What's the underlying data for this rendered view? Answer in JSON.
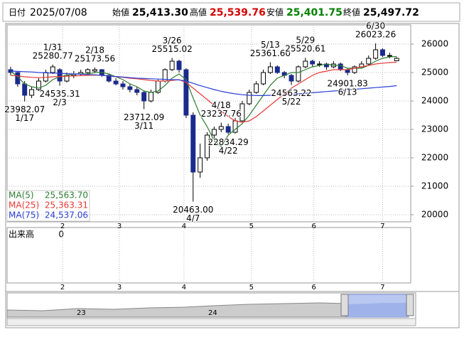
{
  "header": {
    "date_label": "日付",
    "date": "2025/07/08",
    "fields": [
      {
        "label": "始値",
        "value": "25,413.30",
        "color": "#000000"
      },
      {
        "label": "高値",
        "value": "25,539.76",
        "color": "#d40000"
      },
      {
        "label": "安値",
        "value": "25,401.75",
        "color": "#008000"
      },
      {
        "label": "終値",
        "value": "25,497.72",
        "color": "#000000"
      }
    ]
  },
  "chart_data": {
    "type": "candlestick",
    "xlim": [
      -0.5,
      57
    ],
    "xticks": [
      {
        "value": 7.4,
        "label": "2"
      },
      {
        "value": 15.5,
        "label": "3"
      },
      {
        "value": 24.7,
        "label": "4"
      },
      {
        "value": 34.3,
        "label": "5"
      },
      {
        "value": 43.2,
        "label": "6"
      },
      {
        "value": 53,
        "label": "7"
      }
    ],
    "ylim": [
      19750,
      26675
    ],
    "yticks": [
      20000,
      21000,
      22000,
      23000,
      24000,
      25000,
      26000
    ],
    "grid": true,
    "up_color": "#ffffff",
    "down_color": "#1a2a8c",
    "ohlc": [
      [
        25100,
        25200,
        24900,
        25000
      ],
      [
        25000,
        25050,
        24500,
        24600
      ],
      [
        24600,
        24700,
        23982.07,
        24200
      ],
      [
        24200,
        24500,
        24100,
        24400
      ],
      [
        24400,
        24800,
        24350,
        24700
      ],
      [
        24700,
        25100,
        24650,
        25000
      ],
      [
        25000,
        25280.77,
        24950,
        25200
      ],
      [
        25100,
        25150,
        24535.31,
        24700
      ],
      [
        24700,
        25000,
        24650,
        24900
      ],
      [
        24900,
        25050,
        24800,
        24950
      ],
      [
        24950,
        25100,
        24900,
        25000
      ],
      [
        25000,
        25150,
        24950,
        25100
      ],
      [
        25050,
        25173.56,
        24980,
        25100
      ],
      [
        25100,
        25120,
        24850,
        24900
      ],
      [
        24900,
        24950,
        24650,
        24700
      ],
      [
        24700,
        24800,
        24550,
        24600
      ],
      [
        24600,
        24700,
        24400,
        24500
      ],
      [
        24500,
        24600,
        24300,
        24400
      ],
      [
        24400,
        24500,
        24200,
        24300
      ],
      [
        24300,
        24350,
        23712.09,
        24000
      ],
      [
        24000,
        24400,
        23950,
        24300
      ],
      [
        24300,
        24750,
        24250,
        24700
      ],
      [
        24700,
        25150,
        24650,
        25100
      ],
      [
        25100,
        25515.02,
        25050,
        25400
      ],
      [
        25400,
        25450,
        25000,
        25100
      ],
      [
        25100,
        25150,
        23400,
        23500
      ],
      [
        23500,
        23600,
        20463,
        21500
      ],
      [
        21500,
        22500,
        21300,
        22000
      ],
      [
        22000,
        22900,
        21900,
        22800
      ],
      [
        22800,
        23100,
        22600,
        23000
      ],
      [
        23000,
        23237.76,
        22900,
        23100
      ],
      [
        23100,
        23200,
        22834.29,
        22900
      ],
      [
        22900,
        23400,
        22850,
        23300
      ],
      [
        23300,
        24000,
        23250,
        23900
      ],
      [
        23900,
        24400,
        23850,
        24300
      ],
      [
        24300,
        24700,
        24250,
        24600
      ],
      [
        24600,
        25100,
        24550,
        25000
      ],
      [
        25000,
        25361.6,
        24950,
        25200
      ],
      [
        25200,
        25250,
        24950,
        25000
      ],
      [
        25000,
        25050,
        24800,
        24900
      ],
      [
        24900,
        24950,
        24563.22,
        24700
      ],
      [
        24700,
        25250,
        24650,
        25200
      ],
      [
        25200,
        25520.61,
        25150,
        25400
      ],
      [
        25400,
        25450,
        25200,
        25300
      ],
      [
        25300,
        25400,
        25200,
        25300
      ],
      [
        25300,
        25350,
        25100,
        25200
      ],
      [
        25200,
        25400,
        25150,
        25300
      ],
      [
        25300,
        25350,
        25050,
        25100
      ],
      [
        25100,
        25150,
        24901.83,
        25000
      ],
      [
        25000,
        25250,
        24950,
        25200
      ],
      [
        25200,
        25400,
        25150,
        25300
      ],
      [
        25300,
        25600,
        25250,
        25500
      ],
      [
        25500,
        26023.26,
        25450,
        25800
      ],
      [
        25800,
        25850,
        25550,
        25600
      ],
      [
        25600,
        25700,
        25500,
        25600
      ],
      [
        25413.3,
        25539.76,
        25401.75,
        25497.72
      ]
    ],
    "series": [
      {
        "name": "MA(5)",
        "color": "#2e7d32",
        "current": "25,563.70",
        "values": [
          25050,
          24850,
          24600,
          24500,
          24450,
          24550,
          24750,
          24850,
          24900,
          24950,
          24950,
          24950,
          25000,
          25000,
          24950,
          24850,
          24750,
          24600,
          24500,
          24350,
          24300,
          24350,
          24550,
          24800,
          24950,
          24750,
          24100,
          23500,
          23100,
          22600,
          22400,
          22800,
          23000,
          23200,
          23500,
          23850,
          24200,
          24550,
          24800,
          24900,
          25000,
          25000,
          25100,
          25200,
          25250,
          25300,
          25250,
          25250,
          25150,
          25150,
          25150,
          25250,
          25400,
          25500,
          25550,
          25563.7
        ]
      },
      {
        "name": "MA(25)",
        "color": "#e53935",
        "current": "25,363.31",
        "values": [
          24900,
          24880,
          24850,
          24830,
          24820,
          24830,
          24850,
          24860,
          24870,
          24880,
          24890,
          24900,
          24910,
          24900,
          24880,
          24850,
          24830,
          24800,
          24780,
          24750,
          24720,
          24700,
          24700,
          24720,
          24750,
          24650,
          24450,
          24250,
          24050,
          23850,
          23650,
          23450,
          23300,
          23250,
          23300,
          23450,
          23650,
          23850,
          24050,
          24250,
          24450,
          24600,
          24750,
          24900,
          25000,
          25050,
          25100,
          25100,
          25100,
          25150,
          25200,
          25250,
          25300,
          25330,
          25350,
          25363.31
        ]
      },
      {
        "name": "MA(75)",
        "color": "#2a3fd6",
        "current": "24,537.06",
        "values": [
          25050,
          25040,
          25030,
          25020,
          25000,
          24990,
          24980,
          24970,
          24960,
          24950,
          24940,
          24930,
          24920,
          24900,
          24880,
          24860,
          24840,
          24820,
          24800,
          24790,
          24780,
          24770,
          24760,
          24750,
          24740,
          24700,
          24620,
          24540,
          24470,
          24400,
          24340,
          24290,
          24250,
          24220,
          24200,
          24190,
          24190,
          24200,
          24210,
          24220,
          24230,
          24250,
          24270,
          24290,
          24310,
          24330,
          24350,
          24370,
          24390,
          24410,
          24430,
          24450,
          24470,
          24490,
          24510,
          24537.06
        ]
      }
    ],
    "annotations": [
      {
        "index": 2,
        "value": 23982.07,
        "date": "1/17",
        "side": "below"
      },
      {
        "index": 6,
        "value": 25280.77,
        "date": "1/31",
        "side": "above"
      },
      {
        "index": 7,
        "value": 24535.31,
        "date": "2/3",
        "side": "below"
      },
      {
        "index": 12,
        "value": 25173.56,
        "date": "2/18",
        "side": "above"
      },
      {
        "index": 19,
        "value": 23712.09,
        "date": "3/11",
        "side": "below"
      },
      {
        "index": 23,
        "value": 25515.02,
        "date": "3/26",
        "side": "above"
      },
      {
        "index": 26,
        "value": {
          "value": 20463,
          "label": "20463.00"
        },
        "date": "4/7",
        "side": "below"
      },
      {
        "index": 30,
        "value": 23237.76,
        "date": "4/18",
        "side": "above"
      },
      {
        "index": 31,
        "value": 22834.29,
        "date": "4/22",
        "side": "below"
      },
      {
        "index": 37,
        "value": {
          "value": 25361.6,
          "label": "25361.60"
        },
        "date": "5/13",
        "side": "above"
      },
      {
        "index": 40,
        "value": 24563.22,
        "date": "5/22",
        "side": "below"
      },
      {
        "index": 42,
        "value": 25520.61,
        "date": "5/29",
        "side": "above"
      },
      {
        "index": 48,
        "value": 24901.83,
        "date": "6/13",
        "side": "below"
      },
      {
        "index": 52,
        "value": 26023.26,
        "date": "6/30",
        "side": "above"
      }
    ]
  },
  "volume_panel": {
    "label": "出来高",
    "value": 0
  },
  "navigator": {
    "labels": [
      "23",
      "24"
    ]
  }
}
